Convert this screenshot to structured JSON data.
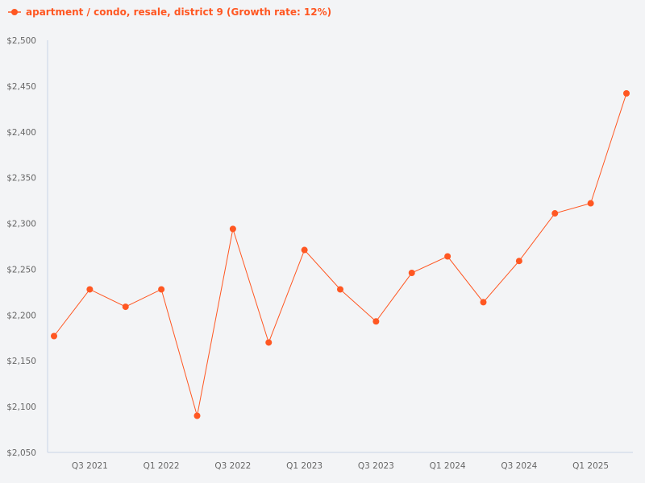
{
  "chart_data": {
    "type": "line",
    "title": "",
    "legend": {
      "position": "top-left",
      "entries": [
        "apartment / condo, resale, district 9 (Growth rate: 12%)"
      ]
    },
    "xlabel": "",
    "ylabel": "",
    "ylim": [
      2050,
      2500
    ],
    "yticks": [
      "$2,050",
      "$2,100",
      "$2,150",
      "$2,200",
      "$2,250",
      "$2,300",
      "$2,350",
      "$2,400",
      "$2,450",
      "$2,500"
    ],
    "ytick_values": [
      2050,
      2100,
      2150,
      2200,
      2250,
      2300,
      2350,
      2400,
      2450,
      2500
    ],
    "xticks": [
      "Q3 2021",
      "Q1 2022",
      "Q3 2022",
      "Q1 2023",
      "Q3 2023",
      "Q1 2024",
      "Q3 2024",
      "Q1 2025"
    ],
    "grid": false,
    "x": [
      "Q2 2021",
      "Q3 2021",
      "Q4 2021",
      "Q1 2022",
      "Q2 2022",
      "Q3 2022",
      "Q4 2022",
      "Q1 2023",
      "Q2 2023",
      "Q3 2023",
      "Q4 2023",
      "Q1 2024",
      "Q2 2024",
      "Q3 2024",
      "Q4 2024",
      "Q1 2025",
      "Q2 2025"
    ],
    "series": [
      {
        "name": "apartment / condo, resale, district 9",
        "color": "#ff5722",
        "values": [
          2177,
          2228,
          2209,
          2228,
          2090,
          2294,
          2170,
          2271,
          2228,
          2193,
          2246,
          2264,
          2214,
          2259,
          2311,
          2322,
          2442
        ]
      }
    ]
  },
  "legend_label": "apartment / condo, resale, district 9 (Growth rate: 12%)",
  "colors": {
    "series": "#ff5722",
    "axis": "#c9d3e6",
    "tick_text": "#666666",
    "background": "#f3f4f6"
  }
}
